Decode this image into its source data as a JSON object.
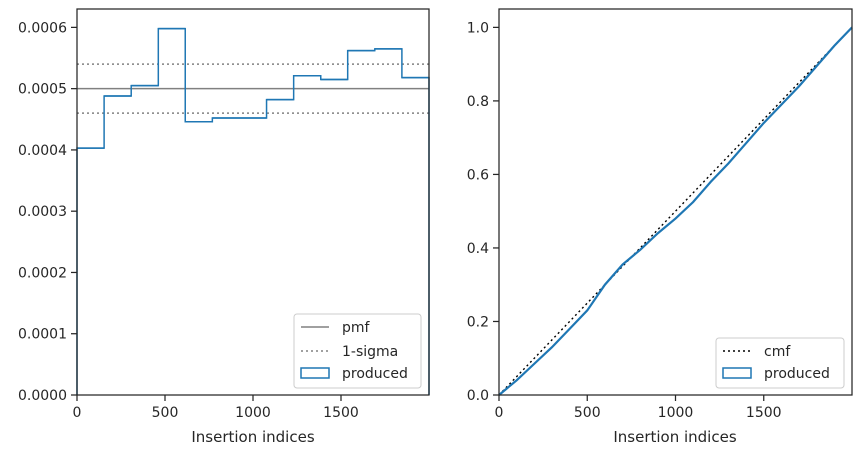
{
  "colors": {
    "hist": "#1f77b4",
    "pmf": "#808080",
    "sigma": "#808080",
    "cmf": "#000000",
    "axes": "#262626",
    "legend_border": "#cccccc"
  },
  "chart_data": [
    {
      "type": "histogram",
      "xlabel": "Insertion indices",
      "ylabel": "",
      "xlim": [
        0,
        2000
      ],
      "ylim": [
        0,
        0.00063
      ],
      "xticks": [
        0,
        500,
        1000,
        1500
      ],
      "yticks": [
        0.0,
        0.0001,
        0.0002,
        0.0003,
        0.0004,
        0.0005,
        0.0006
      ],
      "ytick_labels": [
        "0.0000",
        "0.0001",
        "0.0002",
        "0.0003",
        "0.0004",
        "0.0005",
        "0.0006"
      ],
      "bin_edges": [
        0,
        154,
        308,
        462,
        615,
        769,
        923,
        1077,
        1231,
        1385,
        1538,
        1692,
        1846,
        2000
      ],
      "values": [
        0.000403,
        0.000488,
        0.000505,
        0.000598,
        0.000446,
        0.000452,
        0.000452,
        0.000482,
        0.000521,
        0.000515,
        0.000562,
        0.000565,
        0.000518
      ],
      "pmf": 0.0005,
      "sigma_band": [
        0.00046,
        0.00054
      ],
      "legend": {
        "position": "lower right",
        "entries": [
          {
            "label": "pmf",
            "style": "solid-line"
          },
          {
            "label": "1-sigma",
            "style": "dotted-line"
          },
          {
            "label": "produced",
            "style": "patch"
          }
        ]
      }
    },
    {
      "type": "line",
      "xlabel": "Insertion indices",
      "ylabel": "",
      "xlim": [
        0,
        2000
      ],
      "ylim": [
        0,
        1.05
      ],
      "xticks": [
        0,
        500,
        1000,
        1500
      ],
      "yticks": [
        0.0,
        0.2,
        0.4,
        0.6,
        0.8,
        1.0
      ],
      "ytick_labels": [
        "0.0",
        "0.2",
        "0.4",
        "0.6",
        "0.8",
        "1.0"
      ],
      "series": [
        {
          "name": "cmf",
          "style": "dotted",
          "x": [
            0,
            2000
          ],
          "y": [
            0,
            1.0
          ]
        },
        {
          "name": "produced",
          "style": "step",
          "x": [
            0,
            100,
            200,
            300,
            400,
            500,
            600,
            700,
            800,
            900,
            1000,
            1100,
            1200,
            1300,
            1400,
            1500,
            1600,
            1700,
            1800,
            1900,
            2000
          ],
          "y": [
            0,
            0.04,
            0.085,
            0.13,
            0.18,
            0.23,
            0.3,
            0.355,
            0.395,
            0.44,
            0.48,
            0.525,
            0.58,
            0.63,
            0.685,
            0.74,
            0.79,
            0.84,
            0.895,
            0.95,
            1.0
          ]
        }
      ],
      "legend": {
        "position": "lower right",
        "entries": [
          {
            "label": "cmf",
            "style": "dotted-line"
          },
          {
            "label": "produced",
            "style": "patch"
          }
        ]
      }
    }
  ]
}
